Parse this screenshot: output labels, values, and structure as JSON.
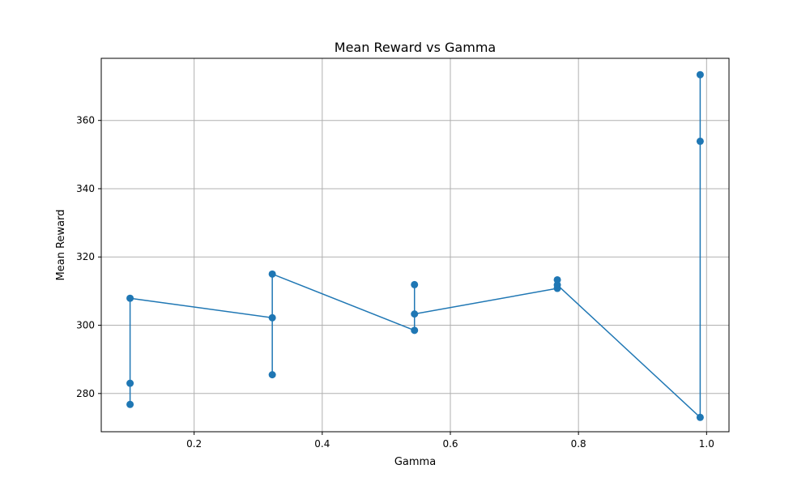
{
  "chart_data": {
    "type": "line",
    "title": "Mean Reward vs Gamma",
    "xlabel": "Gamma",
    "ylabel": "Mean Reward",
    "xlim": [
      0.055,
      1.035
    ],
    "ylim": [
      268.8,
      378.2
    ],
    "xticks": [
      0.2,
      0.4,
      0.6,
      0.8,
      1.0
    ],
    "xtick_labels": [
      "0.2",
      "0.4",
      "0.6",
      "0.8",
      "1.0"
    ],
    "yticks": [
      280,
      300,
      320,
      340,
      360
    ],
    "ytick_labels": [
      "280",
      "300",
      "320",
      "340",
      "360"
    ],
    "grid": true,
    "color": "#1f77b4",
    "series": [
      {
        "x": [
          0.1,
          0.1,
          0.1,
          0.322,
          0.322,
          0.322,
          0.544,
          0.544,
          0.544,
          0.767,
          0.767,
          0.767,
          0.99,
          0.99,
          0.99
        ],
        "y": [
          276.8,
          283.0,
          307.9,
          302.2,
          285.5,
          315.0,
          298.5,
          311.9,
          303.3,
          310.8,
          313.3,
          311.8,
          273.0,
          353.9,
          373.4
        ]
      }
    ]
  }
}
